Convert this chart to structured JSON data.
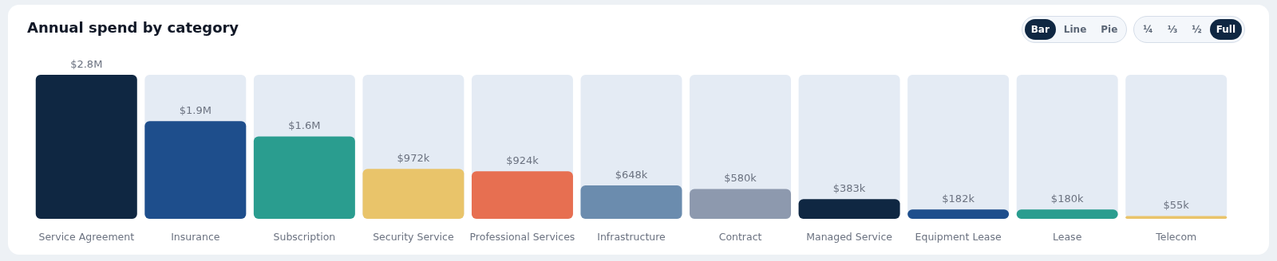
{
  "chart_data": {
    "type": "bar",
    "title": "Annual spend by category",
    "categories": [
      "Service Agreement",
      "Insurance",
      "Subscription",
      "Security Service",
      "Professional Services",
      "Infrastructure",
      "Contract",
      "Managed Service",
      "Equipment Lease",
      "Lease",
      "Telecom"
    ],
    "values": [
      2800000,
      1900000,
      1600000,
      972000,
      924000,
      648000,
      580000,
      383000,
      182000,
      180000,
      55000
    ],
    "value_labels": [
      "$2.8M",
      "$1.9M",
      "$1.6M",
      "$972k",
      "$924k",
      "$648k",
      "$580k",
      "$383k",
      "$182k",
      "$180k",
      "$55k"
    ],
    "colors": [
      "#0f2742",
      "#1e4e8c",
      "#2a9d8f",
      "#e9c46a",
      "#e76f51",
      "#6b8cae",
      "#8d99ae",
      "#0f2742",
      "#1e4e8c",
      "#2a9d8f",
      "#e9c46a"
    ],
    "ylim": [
      0,
      2800000
    ],
    "annotations": [
      "Bar",
      "Line",
      "Pie",
      "¼",
      "⅓",
      "½",
      "Full"
    ]
  }
}
